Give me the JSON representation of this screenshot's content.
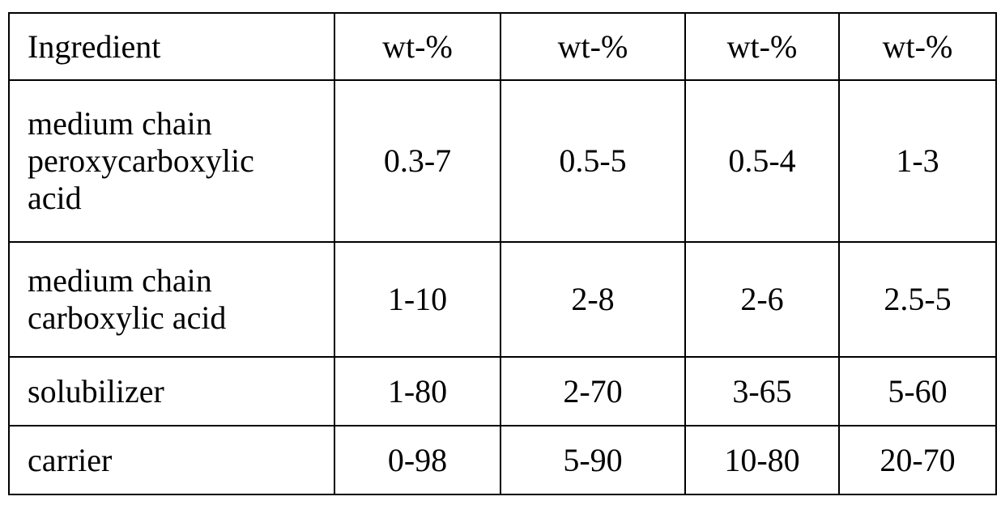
{
  "table": {
    "headers": [
      "Ingredient",
      "wt-%",
      "wt-%",
      "wt-%",
      "wt-%"
    ],
    "rows": [
      {
        "ingredient": "medium chain peroxycarboxylic acid",
        "ingredient_lines": [
          "medium chain",
          "peroxycarboxylic",
          "acid"
        ],
        "values": [
          "0.3-7",
          "0.5-5",
          "0.5-4",
          "1-3"
        ]
      },
      {
        "ingredient": "medium chain carboxylic acid",
        "ingredient_lines": [
          "medium chain",
          "carboxylic acid"
        ],
        "values": [
          "1-10",
          "2-8",
          "2-6",
          "2.5-5"
        ]
      },
      {
        "ingredient": "solubilizer",
        "ingredient_lines": [
          "solubilizer"
        ],
        "values": [
          "1-80",
          "2-70",
          "3-65",
          "5-60"
        ]
      },
      {
        "ingredient": "carrier",
        "ingredient_lines": [
          "carrier"
        ],
        "values": [
          "0-98",
          "5-90",
          "10-80",
          "20-70"
        ]
      }
    ]
  }
}
